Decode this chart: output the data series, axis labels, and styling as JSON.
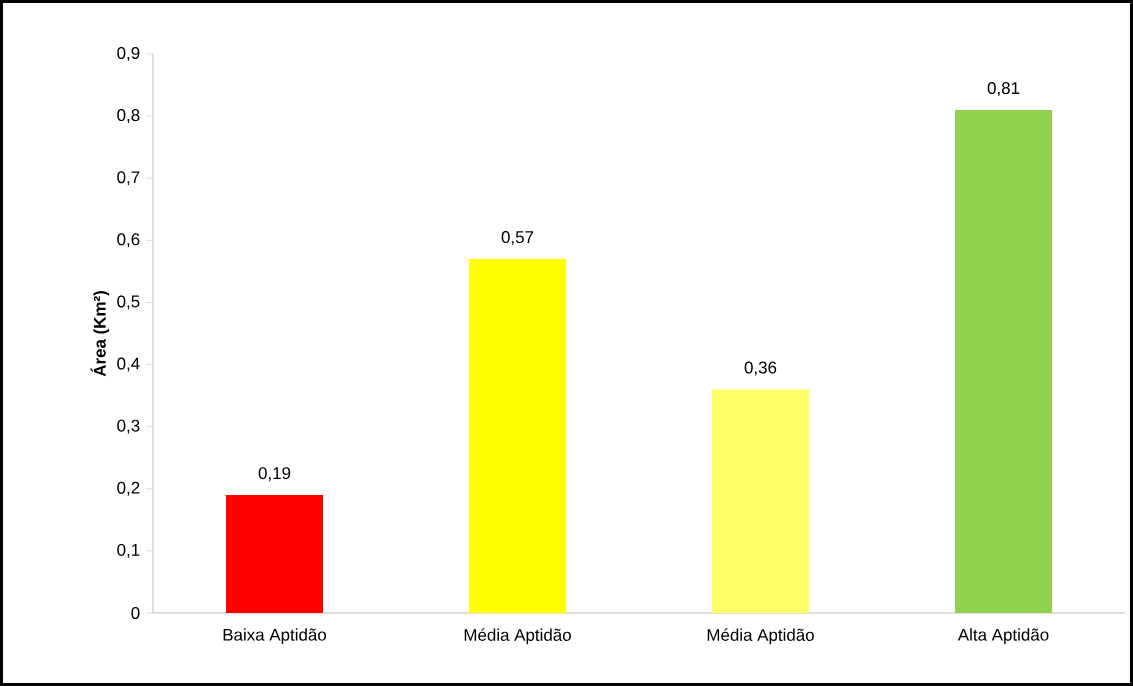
{
  "chart_data": {
    "type": "bar",
    "ylabel": "Área (Km²)",
    "categories": [
      "Baixa Aptidão",
      "Média Aptidão",
      "Média Aptidão",
      "Alta Aptidão"
    ],
    "values": [
      0.19,
      0.57,
      0.36,
      0.81
    ],
    "colors": [
      "#ff0000",
      "#ffff00",
      "#ffff66",
      "#92d050"
    ],
    "value_labels": [
      "0,19",
      "0,57",
      "0,36",
      "0,81"
    ],
    "ylim": [
      0,
      0.9
    ],
    "yticks": [
      0,
      {
        "value": 0.1,
        "label": "0,1"
      },
      {
        "value": 0.2,
        "label": "0,2"
      },
      {
        "value": 0.3,
        "label": "0,3"
      },
      {
        "value": 0.4,
        "label": "0,4"
      },
      {
        "value": 0.5,
        "label": "0,5"
      },
      {
        "value": 0.6,
        "label": "0,6"
      },
      {
        "value": 0.7,
        "label": "0,7"
      },
      {
        "value": 0.8,
        "label": "0,8"
      },
      {
        "value": 0.9,
        "label": "0,9"
      }
    ]
  }
}
